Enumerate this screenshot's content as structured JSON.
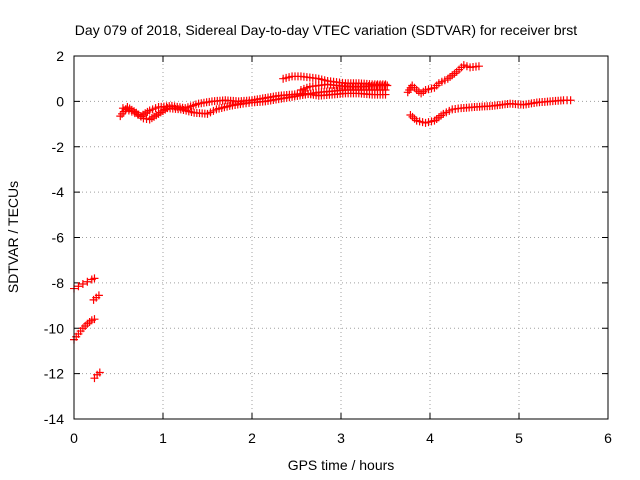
{
  "chart_data": {
    "type": "scatter",
    "title": "Day 079 of 2018, Sidereal Day-to-day VTEC variation (SDTVAR) for receiver brst",
    "xlabel": "GPS time / hours",
    "ylabel": "SDTVAR / TECUs",
    "xlim": [
      0,
      6
    ],
    "ylim": [
      -14,
      2
    ],
    "xticks": [
      "0",
      "1",
      "2",
      "3",
      "4",
      "5",
      "6"
    ],
    "yticks": [
      "2",
      "0",
      "-2",
      "-4",
      "-6",
      "-8",
      "-10",
      "-12",
      "-14"
    ],
    "grid": true,
    "legend": "none",
    "marker": "+",
    "color": "#ff0000",
    "series": [
      {
        "segments": [
          [
            [
              0.0,
              -8.25
            ],
            [
              0.05,
              -8.15
            ],
            [
              0.1,
              -8.05
            ],
            [
              0.15,
              -7.95
            ],
            [
              0.2,
              -7.85
            ],
            [
              0.23,
              -7.8
            ]
          ],
          [
            [
              0.0,
              -10.5
            ],
            [
              0.05,
              -10.25
            ],
            [
              0.1,
              -10.0
            ],
            [
              0.15,
              -9.8
            ],
            [
              0.2,
              -9.65
            ],
            [
              0.23,
              -9.6
            ]
          ],
          [
            [
              0.22,
              -8.75
            ],
            [
              0.25,
              -8.65
            ],
            [
              0.28,
              -8.55
            ]
          ],
          [
            [
              0.23,
              -12.2
            ],
            [
              0.26,
              -12.05
            ],
            [
              0.29,
              -11.95
            ]
          ],
          [
            [
              0.52,
              -0.65
            ],
            [
              0.6,
              -0.25
            ],
            [
              0.7,
              -0.5
            ],
            [
              0.78,
              -0.75
            ],
            [
              0.85,
              -0.8
            ],
            [
              0.95,
              -0.55
            ],
            [
              1.05,
              -0.3
            ],
            [
              1.2,
              -0.35
            ],
            [
              1.35,
              -0.5
            ],
            [
              1.5,
              -0.55
            ],
            [
              1.6,
              -0.35
            ],
            [
              1.75,
              -0.2
            ],
            [
              1.9,
              -0.1
            ],
            [
              2.0,
              -0.05
            ],
            [
              2.15,
              0.0
            ],
            [
              2.3,
              0.1
            ],
            [
              2.45,
              0.2
            ],
            [
              2.6,
              0.3
            ],
            [
              2.75,
              0.4
            ],
            [
              2.9,
              0.45
            ],
            [
              3.05,
              0.5
            ],
            [
              3.2,
              0.5
            ],
            [
              3.35,
              0.5
            ],
            [
              3.5,
              0.5
            ]
          ],
          [
            [
              0.55,
              -0.3
            ],
            [
              0.65,
              -0.45
            ],
            [
              0.75,
              -0.65
            ],
            [
              0.85,
              -0.4
            ],
            [
              0.95,
              -0.25
            ],
            [
              1.1,
              -0.2
            ],
            [
              1.25,
              -0.3
            ],
            [
              1.4,
              -0.1
            ],
            [
              1.55,
              0.0
            ],
            [
              1.7,
              0.05
            ],
            [
              1.85,
              0.0
            ],
            [
              2.0,
              0.05
            ],
            [
              2.15,
              0.15
            ],
            [
              2.3,
              0.25
            ],
            [
              2.45,
              0.3
            ],
            [
              2.6,
              0.35
            ],
            [
              2.75,
              0.25
            ],
            [
              2.9,
              0.3
            ],
            [
              3.05,
              0.35
            ],
            [
              3.2,
              0.35
            ],
            [
              3.35,
              0.3
            ],
            [
              3.5,
              0.3
            ]
          ],
          [
            [
              2.35,
              1.0
            ],
            [
              2.45,
              1.1
            ],
            [
              2.55,
              1.1
            ],
            [
              2.65,
              1.05
            ],
            [
              2.75,
              1.0
            ],
            [
              2.85,
              0.9
            ],
            [
              2.95,
              0.85
            ],
            [
              3.05,
              0.8
            ],
            [
              3.2,
              0.8
            ],
            [
              3.35,
              0.75
            ],
            [
              3.5,
              0.75
            ]
          ],
          [
            [
              2.55,
              0.5
            ],
            [
              2.65,
              0.65
            ],
            [
              2.75,
              0.7
            ],
            [
              2.85,
              0.75
            ],
            [
              2.95,
              0.7
            ],
            [
              3.1,
              0.65
            ],
            [
              3.25,
              0.65
            ],
            [
              3.4,
              0.7
            ],
            [
              3.52,
              0.7
            ]
          ],
          [
            [
              3.75,
              0.4
            ],
            [
              3.8,
              0.7
            ],
            [
              3.85,
              0.5
            ],
            [
              3.9,
              0.35
            ],
            [
              3.95,
              0.5
            ],
            [
              4.05,
              0.6
            ],
            [
              4.1,
              0.8
            ],
            [
              4.2,
              1.0
            ],
            [
              4.3,
              1.3
            ],
            [
              4.38,
              1.6
            ],
            [
              4.45,
              1.5
            ],
            [
              4.55,
              1.55
            ]
          ],
          [
            [
              3.78,
              -0.6
            ],
            [
              3.85,
              -0.85
            ],
            [
              3.95,
              -0.95
            ],
            [
              4.05,
              -0.85
            ],
            [
              4.15,
              -0.55
            ],
            [
              4.25,
              -0.35
            ],
            [
              4.35,
              -0.3
            ],
            [
              4.5,
              -0.25
            ],
            [
              4.7,
              -0.2
            ],
            [
              4.9,
              -0.1
            ],
            [
              5.05,
              -0.15
            ],
            [
              5.2,
              -0.05
            ],
            [
              5.35,
              0.0
            ],
            [
              5.5,
              0.05
            ],
            [
              5.58,
              0.05
            ]
          ]
        ]
      }
    ]
  }
}
